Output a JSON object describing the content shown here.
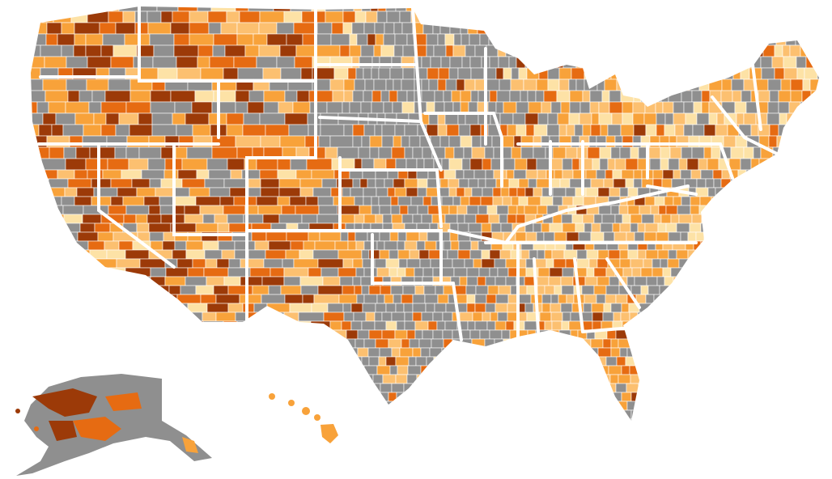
{
  "map": {
    "type": "county-choropleth",
    "region": "United States",
    "legend_visible": false,
    "palette": {
      "no_data": "#8f8f8f",
      "very_low": "#fde2a6",
      "low": "#fcc070",
      "medium": "#f8a23a",
      "high": "#e66b12",
      "very_high": "#9c3a08"
    },
    "land_fill": "#8f8f8f",
    "background": "#ffffff",
    "border_color": "#ffffff"
  }
}
